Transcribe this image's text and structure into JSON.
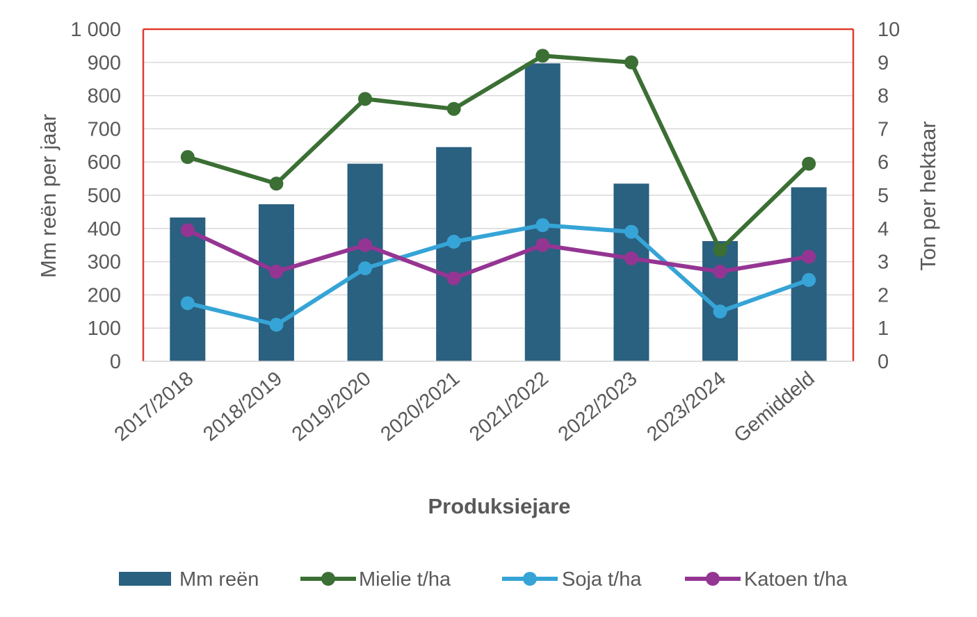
{
  "chart_data": {
    "type": "bar+line",
    "title": "",
    "xlabel": "Produksiejare",
    "ylabel_left": "Mm reën per jaar",
    "ylabel_right": "Ton per hektaar",
    "ylim_left": [
      0,
      1000
    ],
    "ylim_right": [
      0,
      10
    ],
    "left_ticks": [
      "0",
      "100",
      "200",
      "300",
      "400",
      "500",
      "600",
      "700",
      "800",
      "900",
      "1 000"
    ],
    "right_ticks": [
      "0",
      "1",
      "2",
      "3",
      "4",
      "5",
      "6",
      "7",
      "8",
      "9",
      "10"
    ],
    "grid": true,
    "legend_position": "bottom",
    "categories": [
      "2017/2018",
      "2018/2019",
      "2019/2020",
      "2020/2021",
      "2021/2022",
      "2022/2023",
      "2023/2024",
      "Gemiddeld"
    ],
    "series": [
      {
        "name": "Mm reën",
        "type": "bar",
        "axis": "left",
        "color": "#2a6080",
        "values": [
          433,
          473,
          595,
          645,
          897,
          535,
          362,
          524
        ]
      },
      {
        "name": "Mielie t/ha",
        "type": "line",
        "axis": "right",
        "color": "#3b6f34",
        "values": [
          6.15,
          5.35,
          7.9,
          7.6,
          9.2,
          9.0,
          3.35,
          5.95
        ]
      },
      {
        "name": "Soja t/ha",
        "type": "line",
        "axis": "right",
        "color": "#36a4d6",
        "values": [
          1.75,
          1.1,
          2.8,
          3.6,
          4.1,
          3.9,
          1.5,
          2.45
        ]
      },
      {
        "name": "Katoen t/ha",
        "type": "line",
        "axis": "right",
        "color": "#953593",
        "values": [
          3.95,
          2.7,
          3.5,
          2.5,
          3.5,
          3.1,
          2.7,
          3.15
        ]
      }
    ]
  },
  "colors": {
    "plot_border": "#e03a2f",
    "gridline": "#d9d9d9",
    "axis_text": "#595959"
  }
}
